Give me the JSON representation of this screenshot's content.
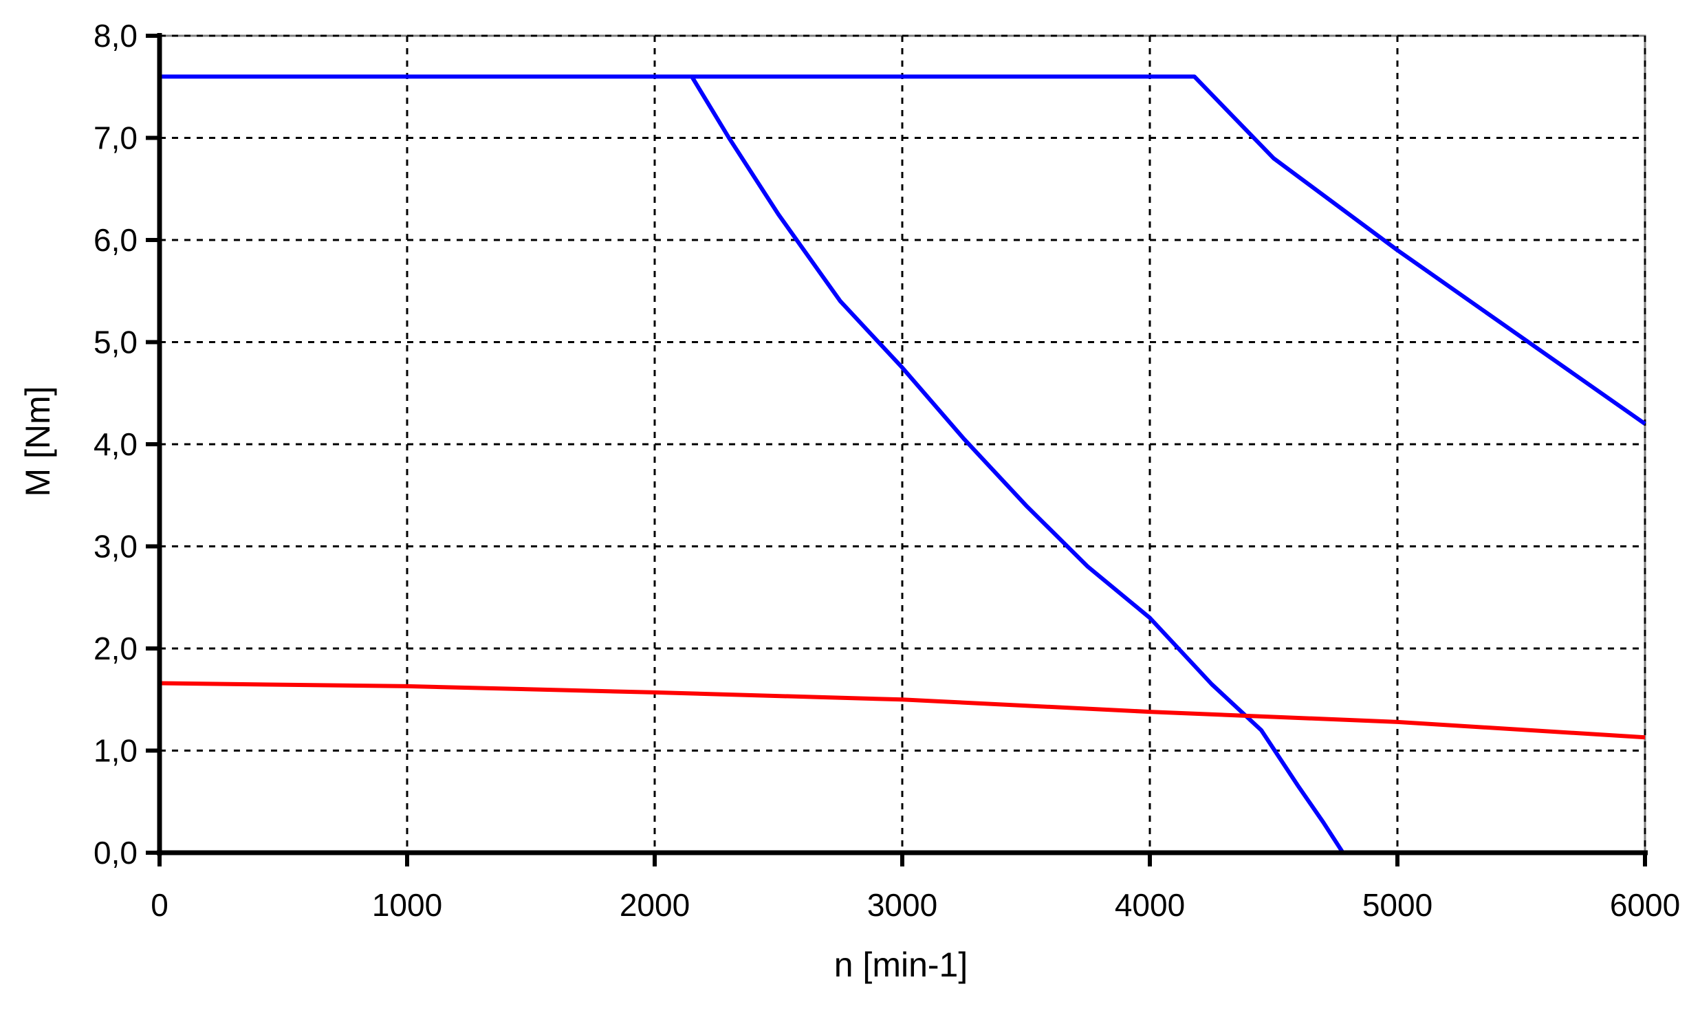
{
  "chart_data": {
    "type": "line",
    "title": "",
    "xlabel": "n [min-1]",
    "ylabel": "M [Nm]",
    "xlim": [
      0,
      6000
    ],
    "ylim": [
      0,
      8
    ],
    "x_ticks": [
      0,
      1000,
      2000,
      3000,
      4000,
      5000,
      6000
    ],
    "x_tick_labels": [
      "0",
      "1000",
      "2000",
      "3000",
      "4000",
      "5000",
      "6000"
    ],
    "y_ticks": [
      0,
      1,
      2,
      3,
      4,
      5,
      6,
      7,
      8
    ],
    "y_tick_labels": [
      "0,0",
      "1,0",
      "2,0",
      "3,0",
      "4,0",
      "5,0",
      "6,0",
      "7,0",
      "8,0"
    ],
    "grid": true,
    "grid_style": "dashed",
    "legend": "none",
    "series": [
      {
        "color": "#0000ff",
        "x": [
          0,
          4180,
          4500,
          5000,
          5500,
          6000
        ],
        "y": [
          7.6,
          7.6,
          6.8,
          5.9,
          5.05,
          4.2
        ]
      },
      {
        "color": "#0000ff",
        "x": [
          2150,
          2300,
          2500,
          2750,
          3000,
          3250,
          3500,
          3750,
          4000,
          4250,
          4450,
          4600,
          4700,
          4780
        ],
        "y": [
          7.6,
          7.0,
          6.25,
          5.4,
          4.75,
          4.05,
          3.4,
          2.8,
          2.3,
          1.65,
          1.2,
          0.65,
          0.3,
          0.0
        ]
      },
      {
        "color": "#ff0000",
        "x": [
          0,
          1000,
          2000,
          3000,
          4000,
          5000,
          6000
        ],
        "y": [
          1.66,
          1.63,
          1.57,
          1.5,
          1.38,
          1.28,
          1.13
        ]
      }
    ]
  }
}
